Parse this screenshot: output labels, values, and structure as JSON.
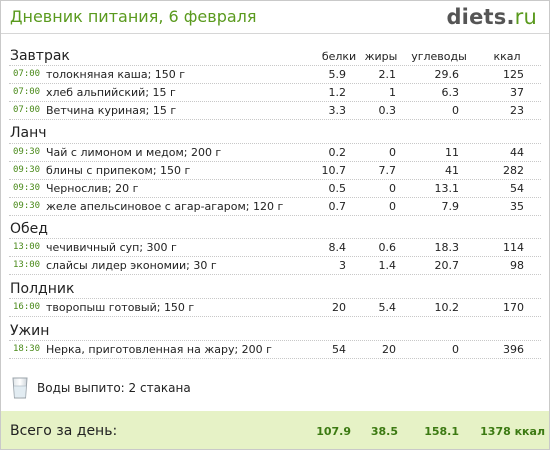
{
  "header": {
    "title": "Дневник питания, 6 февраля",
    "logo_main": "diets",
    "logo_dot": ".",
    "logo_tld": "ru"
  },
  "columns": {
    "protein": "белки",
    "fat": "жиры",
    "carbs": "углеводы",
    "kcal": "ккал"
  },
  "meals": [
    {
      "name": "Завтрак",
      "items": [
        {
          "time": "07:00",
          "food": "толокняная каша; 150 г",
          "protein": "5.9",
          "fat": "2.1",
          "carbs": "29.6",
          "kcal": "125"
        },
        {
          "time": "07:00",
          "food": "хлеб альпийский; 15 г",
          "protein": "1.2",
          "fat": "1",
          "carbs": "6.3",
          "kcal": "37"
        },
        {
          "time": "07:00",
          "food": "Ветчина куриная; 15 г",
          "protein": "3.3",
          "fat": "0.3",
          "carbs": "0",
          "kcal": "23"
        }
      ]
    },
    {
      "name": "Ланч",
      "items": [
        {
          "time": "09:30",
          "food": "Чай с лимоном и медом; 200 г",
          "protein": "0.2",
          "fat": "0",
          "carbs": "11",
          "kcal": "44"
        },
        {
          "time": "09:30",
          "food": "блины с припеком; 150 г",
          "protein": "10.7",
          "fat": "7.7",
          "carbs": "41",
          "kcal": "282"
        },
        {
          "time": "09:30",
          "food": "Чернослив; 20 г",
          "protein": "0.5",
          "fat": "0",
          "carbs": "13.1",
          "kcal": "54"
        },
        {
          "time": "09:30",
          "food": "желе апельсиновое с агар-агаром; 120 г",
          "protein": "0.7",
          "fat": "0",
          "carbs": "7.9",
          "kcal": "35"
        }
      ]
    },
    {
      "name": "Обед",
      "items": [
        {
          "time": "13:00",
          "food": "чечивичный суп; 300 г",
          "protein": "8.4",
          "fat": "0.6",
          "carbs": "18.3",
          "kcal": "114"
        },
        {
          "time": "13:00",
          "food": "слайсы лидер экономии; 30 г",
          "protein": "3",
          "fat": "1.4",
          "carbs": "20.7",
          "kcal": "98"
        }
      ]
    },
    {
      "name": "Полдник",
      "items": [
        {
          "time": "16:00",
          "food": "творопыш готовый; 150 г",
          "protein": "20",
          "fat": "5.4",
          "carbs": "10.2",
          "kcal": "170"
        }
      ]
    },
    {
      "name": "Ужин",
      "items": [
        {
          "time": "18:30",
          "food": "Нерка, приготовленная на жару; 200 г",
          "protein": "54",
          "fat": "20",
          "carbs": "0",
          "kcal": "396"
        }
      ]
    }
  ],
  "water": {
    "icon": "water-glass-icon",
    "text": "Воды выпито: 2 стакана"
  },
  "totals": {
    "label": "Всего за день:",
    "protein": "107.9",
    "fat": "38.5",
    "carbs": "158.1",
    "kcal": "1378 ккал"
  },
  "colors": {
    "accent": "#5a9a1e",
    "time": "#4a8a1a",
    "totals_bg": "#e6f2c6",
    "totals_text": "#3c7a12"
  }
}
